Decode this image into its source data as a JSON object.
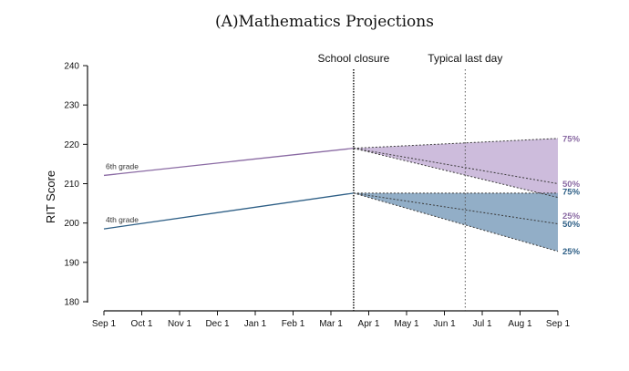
{
  "chart_data": {
    "type": "line",
    "title": "(A)Mathematics Projections",
    "ylabel": "RIT Score",
    "xlabel": "",
    "ylim": [
      180,
      240
    ],
    "yticks": [
      180,
      190,
      200,
      210,
      220,
      230,
      240
    ],
    "x_categories": [
      "Sep 1",
      "Oct 1",
      "Nov 1",
      "Dec 1",
      "Jan 1",
      "Feb 1",
      "Mar 1",
      "Apr 1",
      "May 1",
      "Jun 1",
      "Jul 1",
      "Aug 1",
      "Sep 1"
    ],
    "grid": false,
    "annotations": [
      {
        "label": "School closure",
        "x": 6.6,
        "style": "dense-dotted"
      },
      {
        "label": "Typical last day",
        "x": 9.55,
        "style": "dotted"
      }
    ],
    "series": [
      {
        "name": "6th grade",
        "color": "#8a6aa3",
        "fill": "#c4b0d6",
        "observed": [
          [
            0,
            212.1
          ],
          [
            6.6,
            219.0
          ]
        ],
        "projections": [
          {
            "label": "75%",
            "end": [
              12,
              221.5
            ]
          },
          {
            "label": "50%",
            "end": [
              12,
              210.0
            ]
          },
          {
            "label": "25%",
            "end": [
              12,
              206.5
            ]
          }
        ]
      },
      {
        "name": "4th grade",
        "color": "#2e5f86",
        "fill": "#7fa0bd",
        "observed": [
          [
            0,
            198.5
          ],
          [
            6.6,
            207.6
          ]
        ],
        "projections": [
          {
            "label": "75%",
            "end": [
              12,
              207.6
            ]
          },
          {
            "label": "50%",
            "end": [
              12,
              199.8
            ]
          },
          {
            "label": "25%",
            "end": [
              12,
              192.8
            ]
          }
        ]
      }
    ]
  }
}
